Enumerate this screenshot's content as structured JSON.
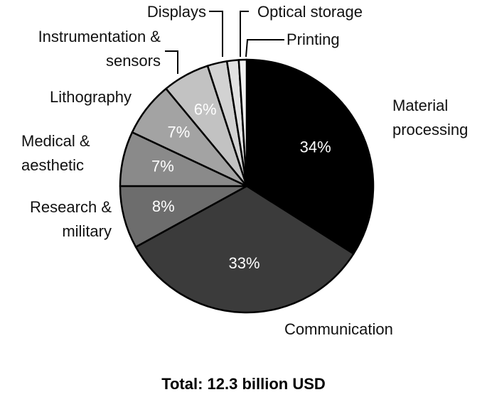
{
  "chart_data": {
    "type": "pie",
    "title": "Total: 12.3 billion USD",
    "categories": [
      "Material processing",
      "Communication",
      "Research & military",
      "Medical & aesthetic",
      "Lithography",
      "Instrumentation & sensors",
      "Displays",
      "Optical storage",
      "Printing"
    ],
    "values": [
      34,
      33,
      8,
      7,
      7,
      6,
      2.5,
      1.5,
      1
    ],
    "value_labels": [
      "34%",
      "33%",
      "8%",
      "7%",
      "7%",
      "6%",
      null,
      null,
      null
    ],
    "colors": [
      "#000000",
      "#3b3b3b",
      "#6d6d6d",
      "#8a8a8a",
      "#a3a3a3",
      "#c2c2c2",
      "#d2d2d2",
      "#e2e2e2",
      "#f2f2f2"
    ]
  }
}
